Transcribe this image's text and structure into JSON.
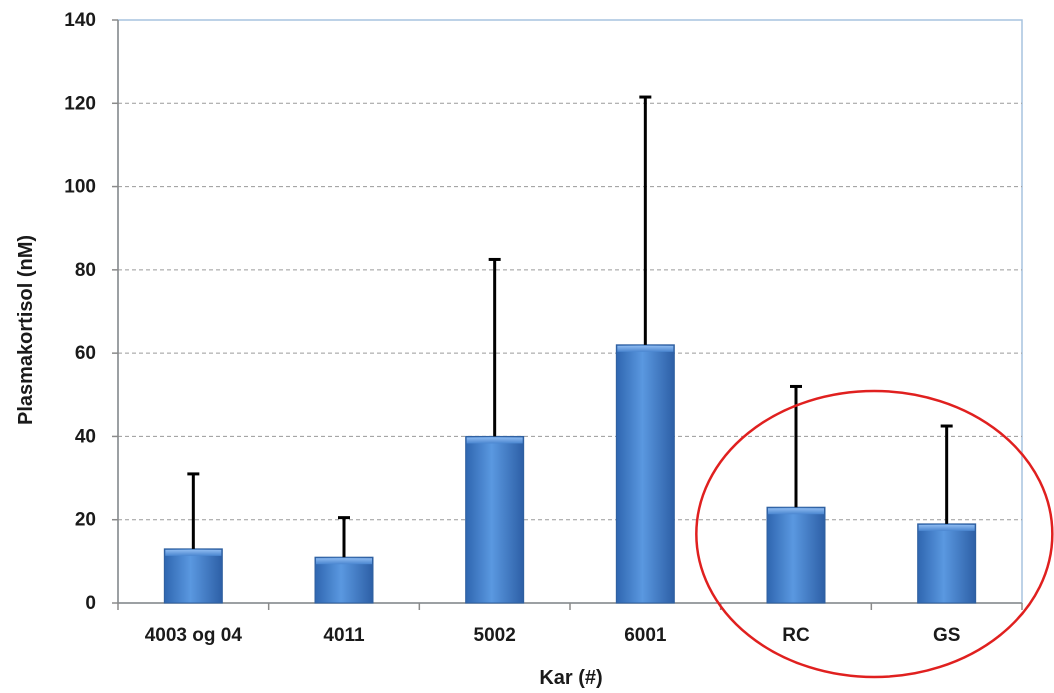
{
  "chart_data": {
    "type": "bar",
    "title": "",
    "xlabel": "Kar (#)",
    "ylabel": "Plasmakortisol (nM)",
    "categories": [
      "4003 og 04",
      "4011",
      "5002",
      "6001",
      "RC",
      "GS"
    ],
    "values": [
      13,
      11,
      40,
      62,
      23,
      19
    ],
    "error_upper": [
      31,
      20.5,
      82.5,
      121.5,
      52,
      42.5
    ],
    "ylim": [
      0,
      140
    ],
    "yticks": [
      0,
      20,
      40,
      60,
      80,
      100,
      120,
      140
    ],
    "grid": true,
    "legend": "none",
    "colors": {
      "bar": "#4a86d0",
      "bar_edge": "#2f5f9e",
      "error_bar": "#000000",
      "grid": "#9a9a9a",
      "axis": "#8a8a8a",
      "plot_border": "#a7c3df",
      "highlight_ellipse": "#e0201f"
    },
    "annotations": [
      {
        "type": "ellipse",
        "encloses": [
          "RC",
          "GS"
        ],
        "color": "#e0201f"
      }
    ]
  }
}
